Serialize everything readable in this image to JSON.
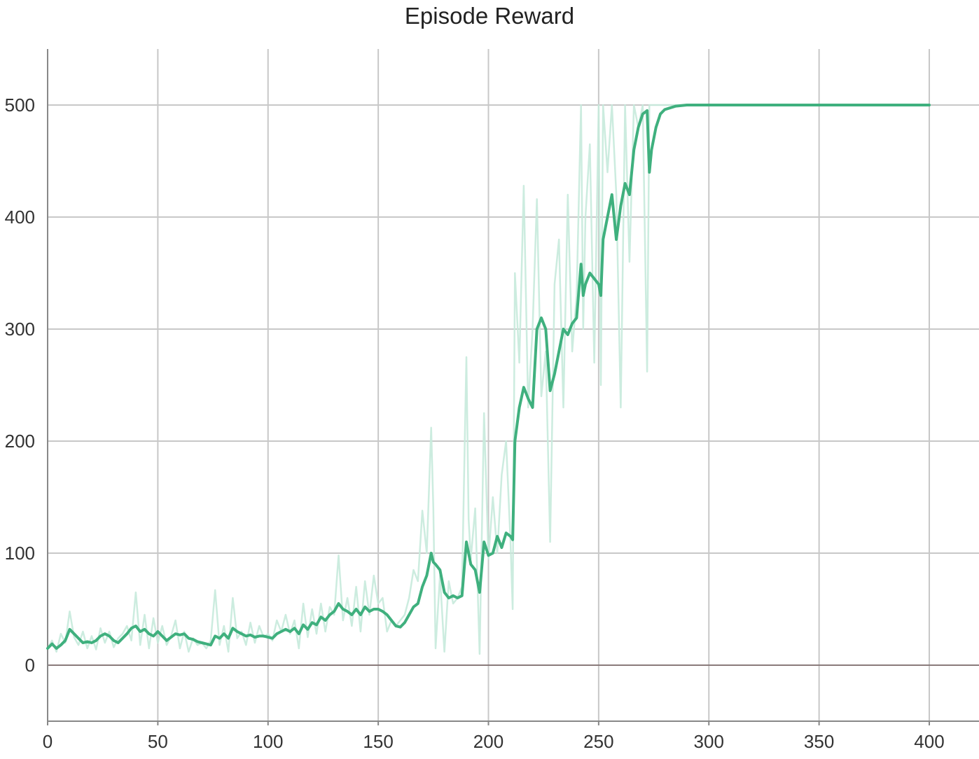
{
  "chart_data": {
    "type": "line",
    "title": "Episode Reward",
    "xlabel": "",
    "ylabel": "",
    "xlim": [
      0,
      400
    ],
    "ylim": [
      -50,
      550
    ],
    "xticks": [
      0,
      50,
      100,
      150,
      200,
      250,
      300,
      350,
      400
    ],
    "yticks": [
      0,
      100,
      200,
      300,
      400,
      500
    ],
    "xtick_labels": [
      "0",
      "50",
      "100",
      "150",
      "200",
      "250",
      "300",
      "350",
      "400"
    ],
    "ytick_labels": [
      "0",
      "100",
      "200",
      "300",
      "400",
      "500"
    ],
    "grid": true,
    "legend": "none",
    "series": [
      {
        "role": "raw",
        "color": "#c7eadb",
        "x": [
          0,
          2,
          4,
          6,
          8,
          10,
          12,
          14,
          16,
          18,
          20,
          22,
          24,
          26,
          28,
          30,
          32,
          34,
          36,
          38,
          40,
          42,
          44,
          46,
          48,
          50,
          52,
          54,
          56,
          58,
          60,
          62,
          64,
          66,
          68,
          70,
          72,
          74,
          76,
          78,
          80,
          82,
          84,
          86,
          88,
          90,
          92,
          94,
          96,
          98,
          100,
          102,
          104,
          106,
          108,
          110,
          112,
          114,
          116,
          118,
          120,
          122,
          124,
          126,
          128,
          130,
          132,
          134,
          136,
          138,
          140,
          142,
          144,
          146,
          148,
          150,
          152,
          154,
          156,
          158,
          160,
          162,
          164,
          166,
          168,
          170,
          172,
          174,
          175,
          176,
          178,
          180,
          182,
          184,
          186,
          188,
          190,
          191,
          192,
          194,
          196,
          198,
          200,
          202,
          204,
          206,
          208,
          210,
          211,
          212,
          214,
          216,
          218,
          220,
          222,
          224,
          226,
          228,
          230,
          232,
          234,
          236,
          238,
          240,
          242,
          243,
          244,
          246,
          248,
          250,
          251,
          252,
          254,
          256,
          258,
          260,
          262,
          264,
          266,
          268,
          270,
          272,
          273,
          274,
          276,
          278,
          280,
          285,
          290,
          295,
          300,
          320,
          340,
          360,
          380,
          400
        ],
        "values": [
          15,
          22,
          12,
          28,
          20,
          48,
          25,
          18,
          30,
          15,
          26,
          14,
          33,
          20,
          30,
          16,
          24,
          28,
          35,
          22,
          65,
          18,
          45,
          15,
          42,
          20,
          35,
          18,
          26,
          40,
          15,
          30,
          12,
          24,
          18,
          20,
          15,
          22,
          67,
          18,
          35,
          12,
          60,
          24,
          30,
          18,
          38,
          20,
          35,
          25,
          28,
          22,
          40,
          30,
          45,
          28,
          40,
          15,
          55,
          25,
          50,
          28,
          55,
          30,
          52,
          45,
          98,
          40,
          60,
          35,
          70,
          30,
          75,
          45,
          80,
          55,
          60,
          30,
          40,
          35,
          40,
          45,
          60,
          85,
          75,
          138,
          100,
          212,
          140,
          15,
          80,
          12,
          75,
          55,
          60,
          70,
          275,
          130,
          95,
          140,
          10,
          225,
          95,
          150,
          100,
          170,
          200,
          110,
          50,
          350,
          270,
          428,
          230,
          300,
          416,
          240,
          280,
          110,
          340,
          380,
          230,
          420,
          280,
          330,
          500,
          300,
          400,
          465,
          270,
          500,
          250,
          500,
          440,
          500,
          420,
          230,
          500,
          360,
          500,
          480,
          500,
          262,
          500,
          500,
          500,
          500,
          500,
          500,
          500,
          500,
          500,
          500,
          500,
          500,
          500,
          500
        ]
      },
      {
        "role": "smoothed",
        "color": "#3fb07e",
        "x": [
          0,
          2,
          4,
          6,
          8,
          10,
          12,
          14,
          16,
          18,
          20,
          22,
          24,
          26,
          28,
          30,
          32,
          34,
          36,
          38,
          40,
          42,
          44,
          46,
          48,
          50,
          52,
          54,
          56,
          58,
          60,
          62,
          64,
          66,
          68,
          70,
          72,
          74,
          76,
          78,
          80,
          82,
          84,
          86,
          88,
          90,
          92,
          94,
          96,
          98,
          100,
          102,
          104,
          106,
          108,
          110,
          112,
          114,
          116,
          118,
          120,
          122,
          124,
          126,
          128,
          130,
          132,
          134,
          136,
          138,
          140,
          142,
          144,
          146,
          148,
          150,
          152,
          154,
          156,
          158,
          160,
          162,
          164,
          166,
          168,
          170,
          172,
          174,
          175,
          176,
          178,
          180,
          182,
          184,
          186,
          188,
          190,
          191,
          192,
          194,
          196,
          198,
          200,
          202,
          204,
          206,
          208,
          210,
          211,
          212,
          214,
          216,
          218,
          220,
          222,
          224,
          226,
          228,
          230,
          232,
          234,
          236,
          238,
          240,
          242,
          243,
          244,
          246,
          248,
          250,
          251,
          252,
          254,
          256,
          258,
          260,
          262,
          264,
          266,
          268,
          270,
          272,
          273,
          274,
          276,
          278,
          280,
          285,
          290,
          295,
          300,
          320,
          340,
          360,
          380,
          400
        ],
        "values": [
          15,
          19,
          15,
          18,
          22,
          32,
          28,
          24,
          20,
          21,
          20,
          22,
          26,
          28,
          26,
          22,
          20,
          24,
          28,
          33,
          35,
          30,
          32,
          28,
          26,
          30,
          26,
          22,
          25,
          28,
          27,
          28,
          24,
          23,
          21,
          20,
          19,
          18,
          26,
          24,
          28,
          24,
          33,
          30,
          28,
          26,
          27,
          25,
          26,
          26,
          25,
          24,
          28,
          30,
          32,
          30,
          33,
          28,
          36,
          32,
          38,
          36,
          43,
          40,
          45,
          48,
          55,
          50,
          48,
          45,
          50,
          45,
          52,
          48,
          50,
          50,
          48,
          45,
          40,
          35,
          34,
          38,
          45,
          52,
          55,
          70,
          80,
          100,
          92,
          90,
          85,
          65,
          60,
          62,
          60,
          62,
          110,
          100,
          90,
          85,
          65,
          110,
          98,
          100,
          115,
          105,
          118,
          115,
          112,
          200,
          230,
          248,
          238,
          230,
          300,
          310,
          300,
          245,
          260,
          280,
          300,
          295,
          305,
          310,
          358,
          330,
          340,
          350,
          345,
          340,
          330,
          380,
          400,
          420,
          380,
          410,
          430,
          420,
          460,
          480,
          492,
          495,
          440,
          460,
          480,
          492,
          496,
          499,
          500,
          500,
          500,
          500,
          500,
          500,
          500,
          500
        ]
      }
    ]
  }
}
